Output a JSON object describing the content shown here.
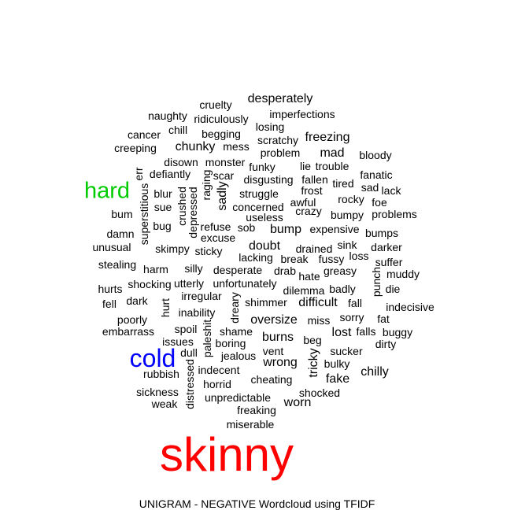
{
  "caption": "UNIGRAM - NEGATIVE Wordcloud using TFIDF",
  "colors": {
    "default": "#000000",
    "skinny": "#ff0000",
    "hard": "#00cc00",
    "cold": "#0000ff"
  },
  "words": [
    "skinny",
    "hard",
    "cold",
    "desperately",
    "cruelty",
    "naughty",
    "ridiculously",
    "imperfections",
    "losing",
    "chill",
    "cancer",
    "begging",
    "scratchy",
    "freezing",
    "creeping",
    "chunky",
    "mess",
    "problem",
    "mad",
    "bloody",
    "disown",
    "monster",
    "lie",
    "trouble",
    "err",
    "defiantly",
    "scar",
    "funky",
    "fanatic",
    "fallen",
    "tired",
    "sad",
    "blur",
    "crushed",
    "raging",
    "sadly",
    "struggle",
    "disgusting",
    "frost",
    "lack",
    "superstitious",
    "depressed",
    "sue",
    "concerned",
    "awful",
    "rocky",
    "foe",
    "bum",
    "useless",
    "crazy",
    "bumpy",
    "problems",
    "damn",
    "bug",
    "refuse",
    "sob",
    "bump",
    "expensive",
    "bumps",
    "excuse",
    "unusual",
    "skimpy",
    "sticky",
    "doubt",
    "sink",
    "darker",
    "lacking",
    "break",
    "drained",
    "fussy",
    "loss",
    "stealing",
    "harm",
    "silly",
    "desperate",
    "drab",
    "greasy",
    "suffer",
    "hate",
    "punch",
    "muddy",
    "hurts",
    "shocking",
    "utterly",
    "unfortunately",
    "dilemma",
    "badly",
    "die",
    "fell",
    "dark",
    "irregular",
    "shimmer",
    "difficult",
    "fall",
    "indecisive",
    "hurt",
    "dreary",
    "inability",
    "poorly",
    "oversize",
    "miss",
    "sorry",
    "fat",
    "embarrass",
    "spoil",
    "paleshit",
    "shame",
    "falls",
    "buggy",
    "issues",
    "boring",
    "burns",
    "beg",
    "lost",
    "dirty",
    "dull",
    "vent",
    "sucker",
    "jealous",
    "wrong",
    "tricky",
    "distressed",
    "bulky",
    "indecent",
    "chilly",
    "rubbish",
    "cheating",
    "fake",
    "horrid",
    "sickness",
    "shocked",
    "unpredictable",
    "weak",
    "worn",
    "freaking",
    "miserable"
  ]
}
